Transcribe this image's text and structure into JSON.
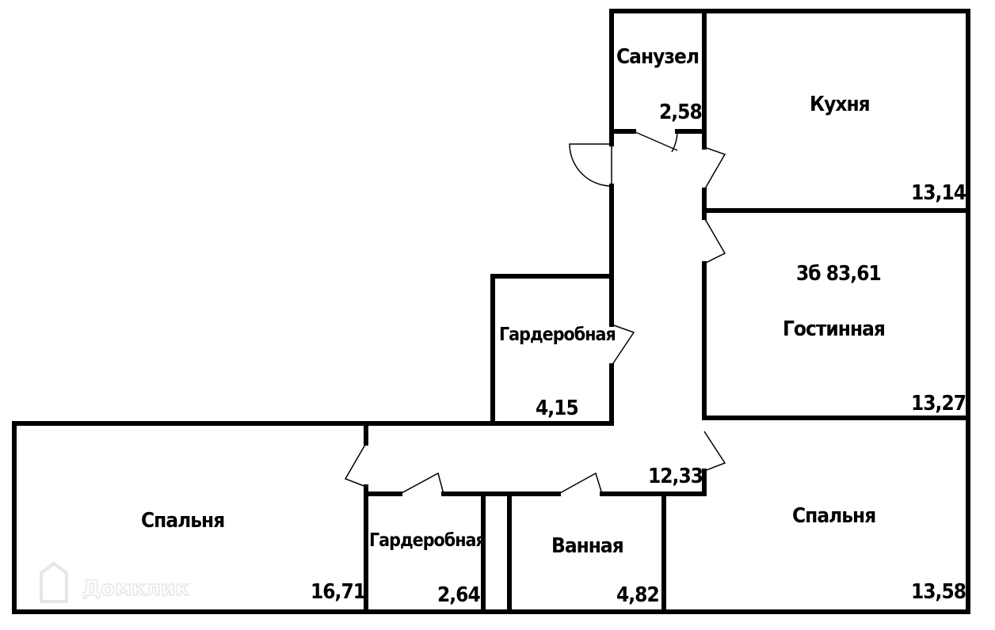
{
  "plan": {
    "total_label": "3б 83,61",
    "rooms": [
      {
        "name": "Санузел",
        "area": "2,58"
      },
      {
        "name": "Кухня",
        "area": "13,14"
      },
      {
        "name": "Гостинная",
        "area": "13,27"
      },
      {
        "name": "Гардеробная",
        "area": "4,15"
      },
      {
        "name": "",
        "area": "12,33"
      },
      {
        "name": "Спальня",
        "area": "16,71"
      },
      {
        "name": "Гардеробная",
        "area": "2,64"
      },
      {
        "name": "Ванная",
        "area": "4,82"
      },
      {
        "name": "Спальня",
        "area": "13,58"
      }
    ]
  },
  "watermark": "Домклик",
  "colors": {
    "wall": "#000000",
    "background": "#ffffff",
    "watermark": "#e6e6e6"
  }
}
